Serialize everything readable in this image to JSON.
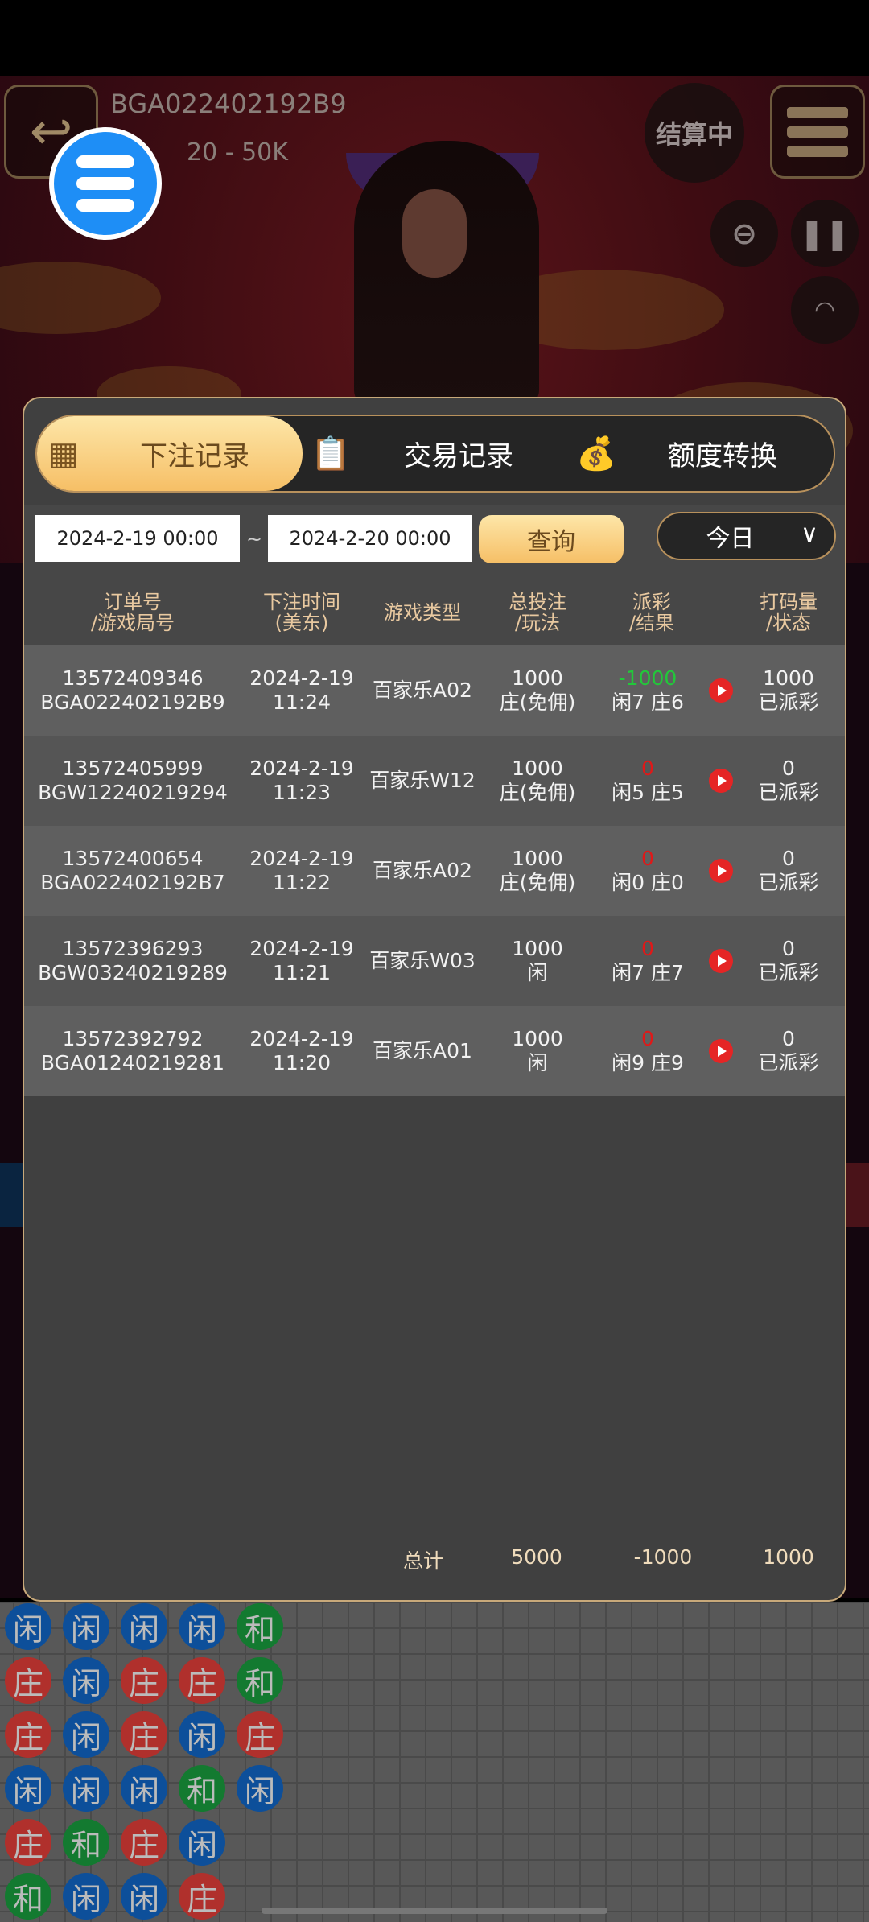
{
  "header": {
    "table_id": "BGA022402192B9",
    "limit": "20 - 50K",
    "status": "结算中"
  },
  "icons": {
    "back": "back-arrow-icon",
    "menu": "hamburger-menu-icon",
    "zoom": "zoom-out-icon",
    "pause": "pause-icon",
    "wifi": "wifi-icon",
    "calendar": "calendar-icon",
    "clipboard": "clipboard-icon",
    "coins": "coins-dollar-icon",
    "play": "play-icon",
    "chevron": "chevron-down-icon"
  },
  "tabs": [
    {
      "label": "下注记录",
      "active": true
    },
    {
      "label": "交易记录"
    },
    {
      "label": "额度转换"
    }
  ],
  "filter": {
    "start": "2024-2-19 00:00",
    "sep": "~",
    "end": "2024-2-20 00:00",
    "query": "查询",
    "range": "今日"
  },
  "columns": [
    {
      "l1": "订单号",
      "l2": "/游戏局号"
    },
    {
      "l1": "下注时间",
      "l2": "(美东)"
    },
    {
      "l1": "游戏类型",
      "l2": ""
    },
    {
      "l1": "总投注",
      "l2": "/玩法"
    },
    {
      "l1": "派彩",
      "l2": "/结果"
    },
    {
      "l1": "打码量",
      "l2": "/状态"
    }
  ],
  "rows": [
    {
      "order": "13572409346",
      "round": "BGA022402192B9",
      "date": "2024-2-19",
      "time": "11:24",
      "game": "百家乐A02",
      "bet": "1000",
      "play": "庄(免佣)",
      "payout": "-1000",
      "result": "闲7 庄6",
      "rolling": "1000",
      "status": "已派彩"
    },
    {
      "order": "13572405999",
      "round": "BGW12240219294",
      "date": "2024-2-19",
      "time": "11:23",
      "game": "百家乐W12",
      "bet": "1000",
      "play": "庄(免佣)",
      "payout": "0",
      "result": "闲5 庄5",
      "rolling": "0",
      "status": "已派彩"
    },
    {
      "order": "13572400654",
      "round": "BGA022402192B7",
      "date": "2024-2-19",
      "time": "11:22",
      "game": "百家乐A02",
      "bet": "1000",
      "play": "庄(免佣)",
      "payout": "0",
      "result": "闲0 庄0",
      "rolling": "0",
      "status": "已派彩"
    },
    {
      "order": "13572396293",
      "round": "BGW03240219289",
      "date": "2024-2-19",
      "time": "11:21",
      "game": "百家乐W03",
      "bet": "1000",
      "play": "闲",
      "payout": "0",
      "result": "闲7 庄7",
      "rolling": "0",
      "status": "已派彩"
    },
    {
      "order": "13572392792",
      "round": "BGA01240219281",
      "date": "2024-2-19",
      "time": "11:20",
      "game": "百家乐A01",
      "bet": "1000",
      "play": "闲",
      "payout": "0",
      "result": "闲9 庄9",
      "rolling": "0",
      "status": "已派彩"
    }
  ],
  "totals": {
    "label": "总计",
    "bet": "5000",
    "payout": "-1000",
    "rolling": "1000"
  },
  "colors": {
    "negative": "#22c83a",
    "zero": "#e01818",
    "gold": "#c8a97a",
    "player": "#0d4f9a",
    "banker": "#b0302c",
    "tie": "#137a30"
  },
  "bead_road": [
    [
      "闲",
      "闲",
      "闲",
      "闲",
      "和"
    ],
    [
      "庄",
      "闲",
      "庄",
      "庄",
      "和"
    ],
    [
      "庄",
      "闲",
      "庄",
      "闲",
      "庄"
    ],
    [
      "闲",
      "闲",
      "闲",
      "和",
      "闲"
    ],
    [
      "庄",
      "和",
      "庄",
      "闲"
    ],
    [
      "和",
      "闲",
      "闲",
      "庄"
    ]
  ]
}
